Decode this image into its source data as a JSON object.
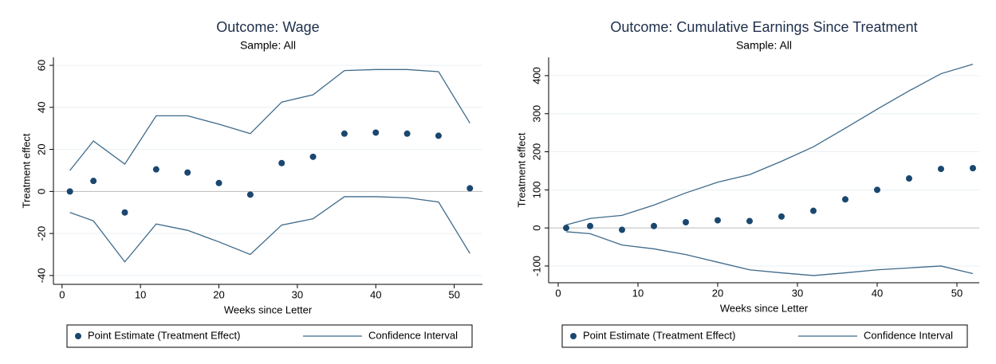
{
  "chart_data": [
    {
      "type": "scatter-ci",
      "title": "Outcome: Wage",
      "subtitle": "Sample: All",
      "x_label": "Weeks since Letter",
      "y_label": "Treatment effect",
      "x": [
        1,
        4,
        8,
        12,
        16,
        20,
        24,
        28,
        32,
        36,
        40,
        44,
        48,
        52
      ],
      "series": [
        {
          "name": "Point Estimate (Treatment Effect)",
          "color": "#1a476f",
          "values": [
            0,
            5,
            -10,
            10.5,
            9,
            4,
            -1.5,
            13.5,
            16.5,
            27.5,
            28,
            27.5,
            26.5,
            1.5
          ]
        },
        {
          "name": "Confidence Interval",
          "color": "#3e6a8a",
          "upper": [
            10,
            24,
            13,
            36,
            36,
            32,
            27.5,
            42.5,
            46,
            57.5,
            58,
            58,
            57,
            32.5
          ],
          "lower": [
            -10,
            -14,
            -33.5,
            -15.5,
            -18.5,
            -24,
            -30,
            -16,
            -13,
            -2.5,
            -2.5,
            -3,
            -5,
            -29.5
          ]
        }
      ],
      "xlim": [
        -1.1,
        53.6
      ],
      "ylim": [
        -44.2,
        63.8
      ],
      "xticks": [
        0,
        10,
        20,
        30,
        40,
        50
      ],
      "yticks": [
        -40,
        -20,
        0,
        20,
        40,
        60
      ],
      "grid": true
    },
    {
      "type": "scatter-ci",
      "title": "Outcome: Cumulative Earnings Since Treatment",
      "subtitle": "Sample: All",
      "x_label": "Weeks since Letter",
      "y_label": "Treatment effect",
      "x": [
        1,
        4,
        8,
        12,
        16,
        20,
        24,
        28,
        32,
        36,
        40,
        44,
        48,
        52
      ],
      "series": [
        {
          "name": "Point Estimate (Treatment Effect)",
          "color": "#1a476f",
          "values": [
            0,
            5,
            -5,
            5,
            15,
            20,
            18,
            30,
            45,
            75,
            100,
            130,
            155,
            157
          ]
        },
        {
          "name": "Confidence Interval",
          "color": "#3e6a8a",
          "upper": [
            8,
            25,
            33,
            60,
            92,
            120,
            140,
            175,
            213,
            262,
            312,
            360,
            405,
            430
          ],
          "lower": [
            -10,
            -15,
            -45,
            -55,
            -70,
            -90,
            -110,
            -118,
            -125,
            -118,
            -110,
            -105,
            -100,
            -120
          ]
        }
      ],
      "xlim": [
        -1.2,
        52.8
      ],
      "ylim": [
        -144,
        448
      ],
      "xticks": [
        0,
        10,
        20,
        30,
        40,
        50
      ],
      "yticks": [
        -100,
        0,
        100,
        200,
        300,
        400
      ],
      "grid": true
    }
  ]
}
